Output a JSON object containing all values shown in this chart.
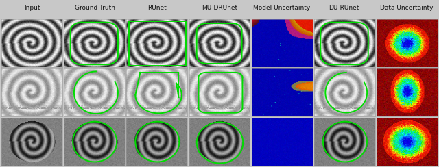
{
  "col_headers": [
    "Input",
    "Ground Truth",
    "RUnet",
    "MU-DRUnet",
    "Model Uncertainty",
    "DU-RUnet",
    "Data Uncertainty"
  ],
  "n_rows": 3,
  "n_cols": 7,
  "fig_width": 6.4,
  "fig_height": 2.44,
  "header_fontsize": 6.5,
  "header_color": "#111111",
  "bg_color": "#c8c8c8",
  "green_color": "#00dd00",
  "figdpi": 100
}
